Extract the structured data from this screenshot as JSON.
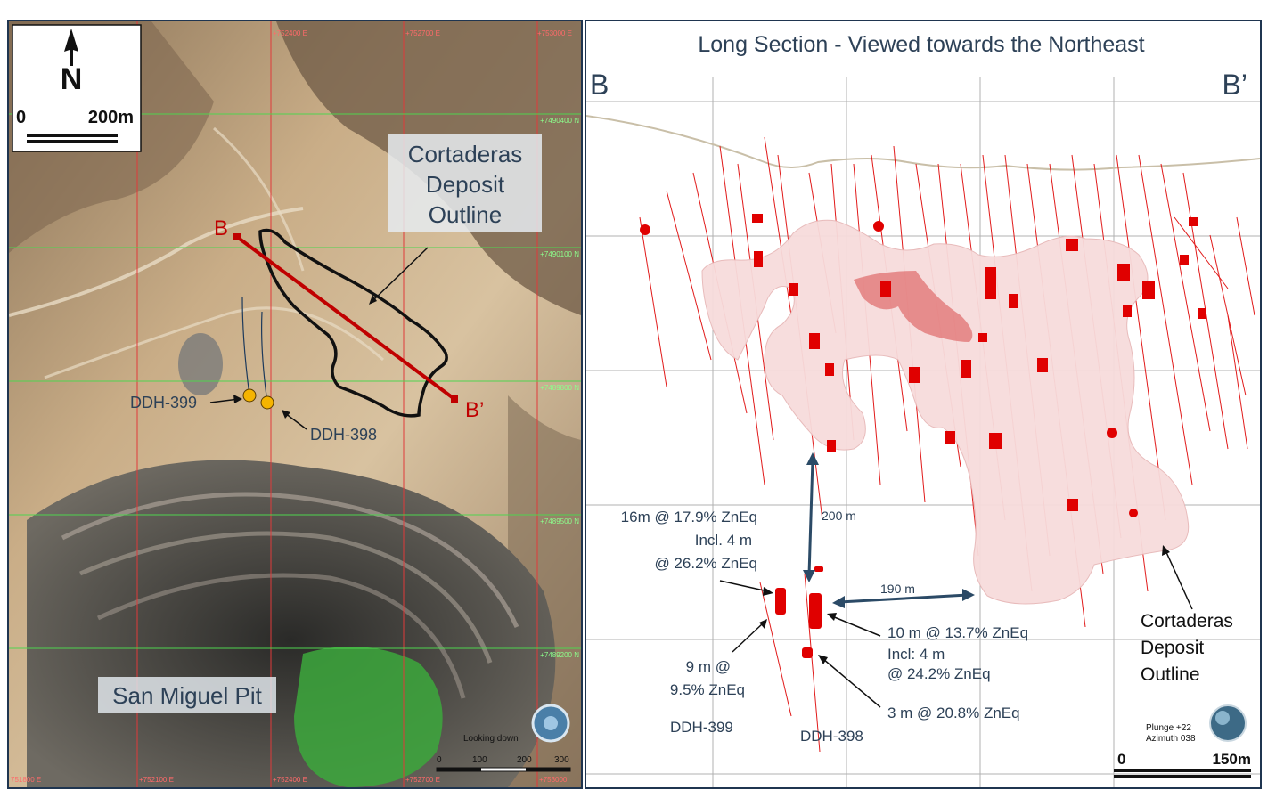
{
  "map_panel": {
    "north_label": "N",
    "scale_start": "0",
    "scale_end": "200m",
    "grid_east_labels": [
      "+752400 E",
      "+752700 E",
      "+753000 E"
    ],
    "grid_north_labels": [
      "+7490400 N",
      "+7490100 N",
      "+7489800 N",
      "+7489500 N",
      "+7489200 N"
    ],
    "bottom_east_labels": [
      "751800 E",
      "+752100 E",
      "+752400 E",
      "+752700 E",
      "+753000"
    ],
    "deposit_label": [
      "Cortaderas",
      "Deposit",
      "Outline"
    ],
    "section_start": "B",
    "section_end": "B’",
    "hole_399": "DDH-399",
    "hole_398": "DDH-398",
    "pit_label": "San Miguel Pit",
    "view_label": "Looking down",
    "bar_scale_ticks": [
      "0",
      "100",
      "200",
      "300"
    ],
    "colors": {
      "section_line": "#c00000",
      "collar": "#f5b400",
      "grid_green": "#4fd44f",
      "grid_red": "#e03a3a",
      "pit_green": "#3ca83c"
    }
  },
  "section_panel": {
    "title": "Long Section - Viewed towards the Northeast",
    "corner_left": "B",
    "corner_right": "B’",
    "dist_200": "200 m",
    "dist_190": "190 m",
    "intercept_399_main": [
      "16m @ 17.9% ZnEq",
      "Incl. 4 m",
      "@ 26.2% ZnEq"
    ],
    "intercept_399_lower": [
      "9 m @",
      "9.5% ZnEq"
    ],
    "intercept_398_main": [
      "10 m @ 13.7% ZnEq",
      "Incl: 4 m",
      "@ 24.2% ZnEq"
    ],
    "intercept_398_lower": "3 m @ 20.8% ZnEq",
    "hole_399": "DDH-399",
    "hole_398": "DDH-398",
    "deposit_label": [
      "Cortaderas",
      "Deposit",
      "Outline"
    ],
    "orientation": [
      "Plunge +22",
      "Azimuth 038"
    ],
    "scale_start": "0",
    "scale_end": "150m",
    "colors": {
      "drill_trace": "#e11a1a",
      "solid_fill": "#f7dcdc",
      "arrow": "#2b4a66"
    }
  }
}
